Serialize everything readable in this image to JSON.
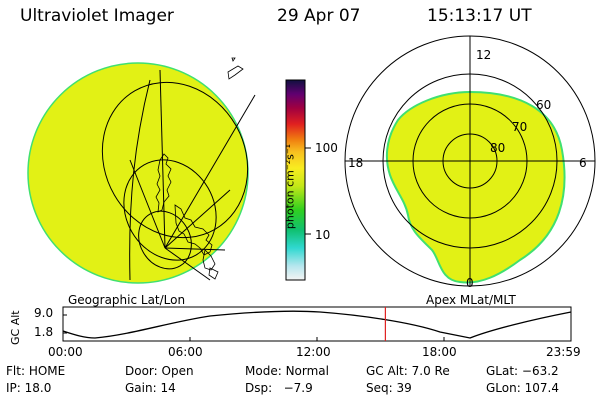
{
  "header": {
    "instrument": "Ultraviolet Imager",
    "date": "29 Apr 07",
    "time": "15:13:17 UT"
  },
  "colors": {
    "aurora_fill": "#e2f115",
    "aurora_edge": "#40e070",
    "time_marker": "#e02020"
  },
  "colorbar": {
    "unit_label": "photon cm⁻²s⁻¹",
    "ticks": [
      "100",
      "10"
    ]
  },
  "left_panel": {
    "label": "Geographic Lat/Lon"
  },
  "right_panel": {
    "label": "Apex  MLat/MLT",
    "mlt_labels": {
      "top": "12",
      "left": "18",
      "right": "6",
      "bottom": "0"
    },
    "lat_labels": [
      "60",
      "70",
      "80"
    ]
  },
  "altitude_plot": {
    "ylabel": "GC Alt",
    "yticks": [
      "9.0",
      "1.8"
    ],
    "xticks": [
      "00:00",
      "06:00",
      "12:00",
      "18:00",
      "23:59"
    ],
    "marker_time_hours": 15.22
  },
  "info": {
    "row1": [
      {
        "label": "Flt:",
        "value": "HOME"
      },
      {
        "label": "Door:",
        "value": "Open"
      },
      {
        "label": "Mode:",
        "value": "Normal"
      },
      {
        "label": "GC Alt:",
        "value": "7.0 Re"
      },
      {
        "label": "GLat:",
        "value": "−63.2"
      }
    ],
    "row2": [
      {
        "label": "IP:",
        "value": "18.0"
      },
      {
        "label": "Gain:",
        "value": "14"
      },
      {
        "label": "Dsp:",
        "value": "  −7.9"
      },
      {
        "label": "Seq:",
        "value": "39"
      },
      {
        "label": "GLon:",
        "value": "107.4"
      }
    ]
  }
}
